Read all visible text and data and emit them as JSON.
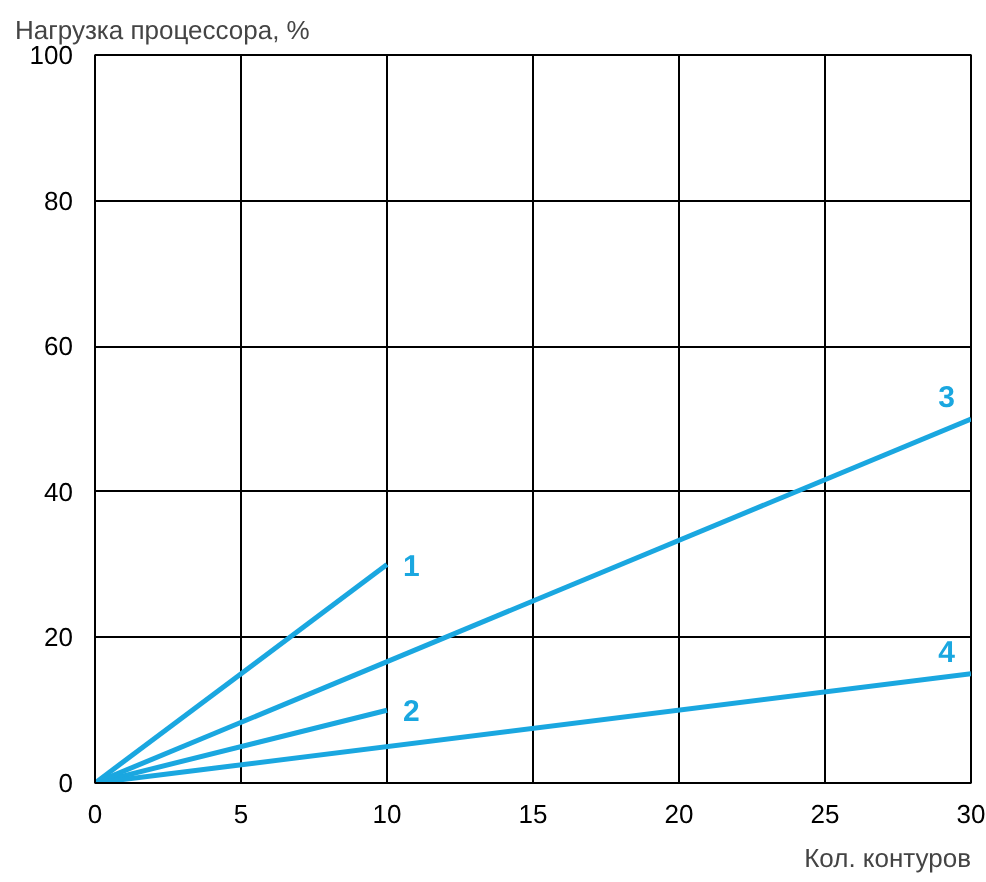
{
  "chart_data": {
    "type": "line",
    "ylabel": "Нагрузка процессора, %",
    "xlabel": "Кол. контуров",
    "xlim": [
      0,
      30
    ],
    "ylim": [
      0,
      100
    ],
    "xticks": [
      0,
      5,
      10,
      15,
      20,
      25,
      30
    ],
    "yticks": [
      0,
      20,
      40,
      60,
      80,
      100
    ],
    "grid": true,
    "series": [
      {
        "name": "1",
        "color": "#1aa7e0",
        "x": [
          0,
          10
        ],
        "values": [
          0,
          30
        ]
      },
      {
        "name": "2",
        "color": "#1aa7e0",
        "x": [
          0,
          10
        ],
        "values": [
          0,
          10
        ]
      },
      {
        "name": "3",
        "color": "#1aa7e0",
        "x": [
          0,
          30
        ],
        "values": [
          0,
          50
        ]
      },
      {
        "name": "4",
        "color": "#1aa7e0",
        "x": [
          0,
          30
        ],
        "values": [
          0,
          15
        ]
      }
    ]
  }
}
